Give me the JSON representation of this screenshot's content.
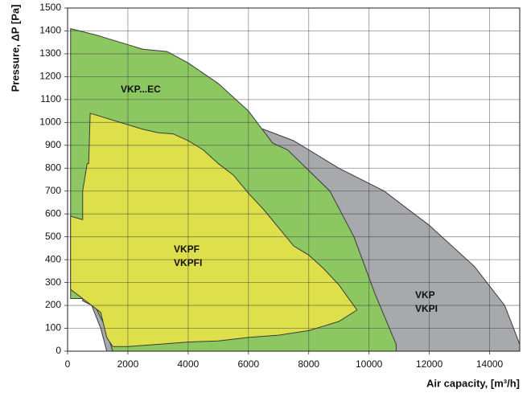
{
  "chart_data": {
    "type": "area",
    "xlabel": "Air capacity, [m³/h]",
    "ylabel": "Pressure, ΔP [Pa]",
    "xlim": [
      0,
      15000
    ],
    "xticks": [
      0,
      2000,
      4000,
      6000,
      8000,
      10000,
      12000,
      14000
    ],
    "ylim": [
      0,
      1500
    ],
    "yticks": [
      0,
      100,
      200,
      300,
      400,
      500,
      600,
      700,
      800,
      900,
      1000,
      1100,
      1200,
      1300,
      1400,
      1500
    ],
    "grid": true,
    "series": [
      {
        "name": [
          "VKP",
          "VKPI"
        ],
        "color": "#a8a9ac",
        "x": [
          500,
          700,
          3000,
          5500,
          6500,
          7500,
          9000,
          10500,
          12000,
          13500,
          14500,
          15000,
          15000,
          1300,
          1100,
          800,
          500
        ],
        "values": [
          1050,
          1050,
          1040,
          1000,
          970,
          920,
          800,
          700,
          550,
          370,
          200,
          30,
          0,
          0,
          100,
          200,
          220
        ]
      },
      {
        "name": [
          "VKP...EC"
        ],
        "color": "#8dc762",
        "x": [
          100,
          1000,
          2000,
          2500,
          3300,
          4000,
          5000,
          6000,
          6800,
          7300,
          8000,
          8700,
          9500,
          10200,
          10900,
          10900,
          1500,
          1200,
          900,
          600,
          100
        ],
        "values": [
          1410,
          1380,
          1340,
          1320,
          1310,
          1260,
          1170,
          1050,
          910,
          880,
          790,
          700,
          500,
          250,
          30,
          0,
          0,
          120,
          200,
          230,
          230
        ]
      },
      {
        "name": [
          "VKPF",
          "VKPFI"
        ],
        "color": "#dde04b",
        "x": [
          750,
          1500,
          2500,
          3000,
          3500,
          4000,
          4500,
          5000,
          5500,
          6000,
          6500,
          7000,
          7500,
          8000,
          8500,
          9000,
          9600,
          9000,
          8500,
          8000,
          7000,
          6000,
          5000,
          4000,
          3000,
          2000,
          1500,
          1300,
          1100,
          700,
          100,
          100,
          500,
          500,
          650,
          700
        ],
        "values": [
          1040,
          1010,
          970,
          955,
          950,
          920,
          880,
          820,
          770,
          690,
          620,
          540,
          460,
          420,
          360,
          290,
          180,
          130,
          110,
          90,
          70,
          60,
          45,
          40,
          30,
          20,
          20,
          60,
          170,
          210,
          270,
          590,
          575,
          700,
          820,
          820
        ]
      }
    ]
  }
}
